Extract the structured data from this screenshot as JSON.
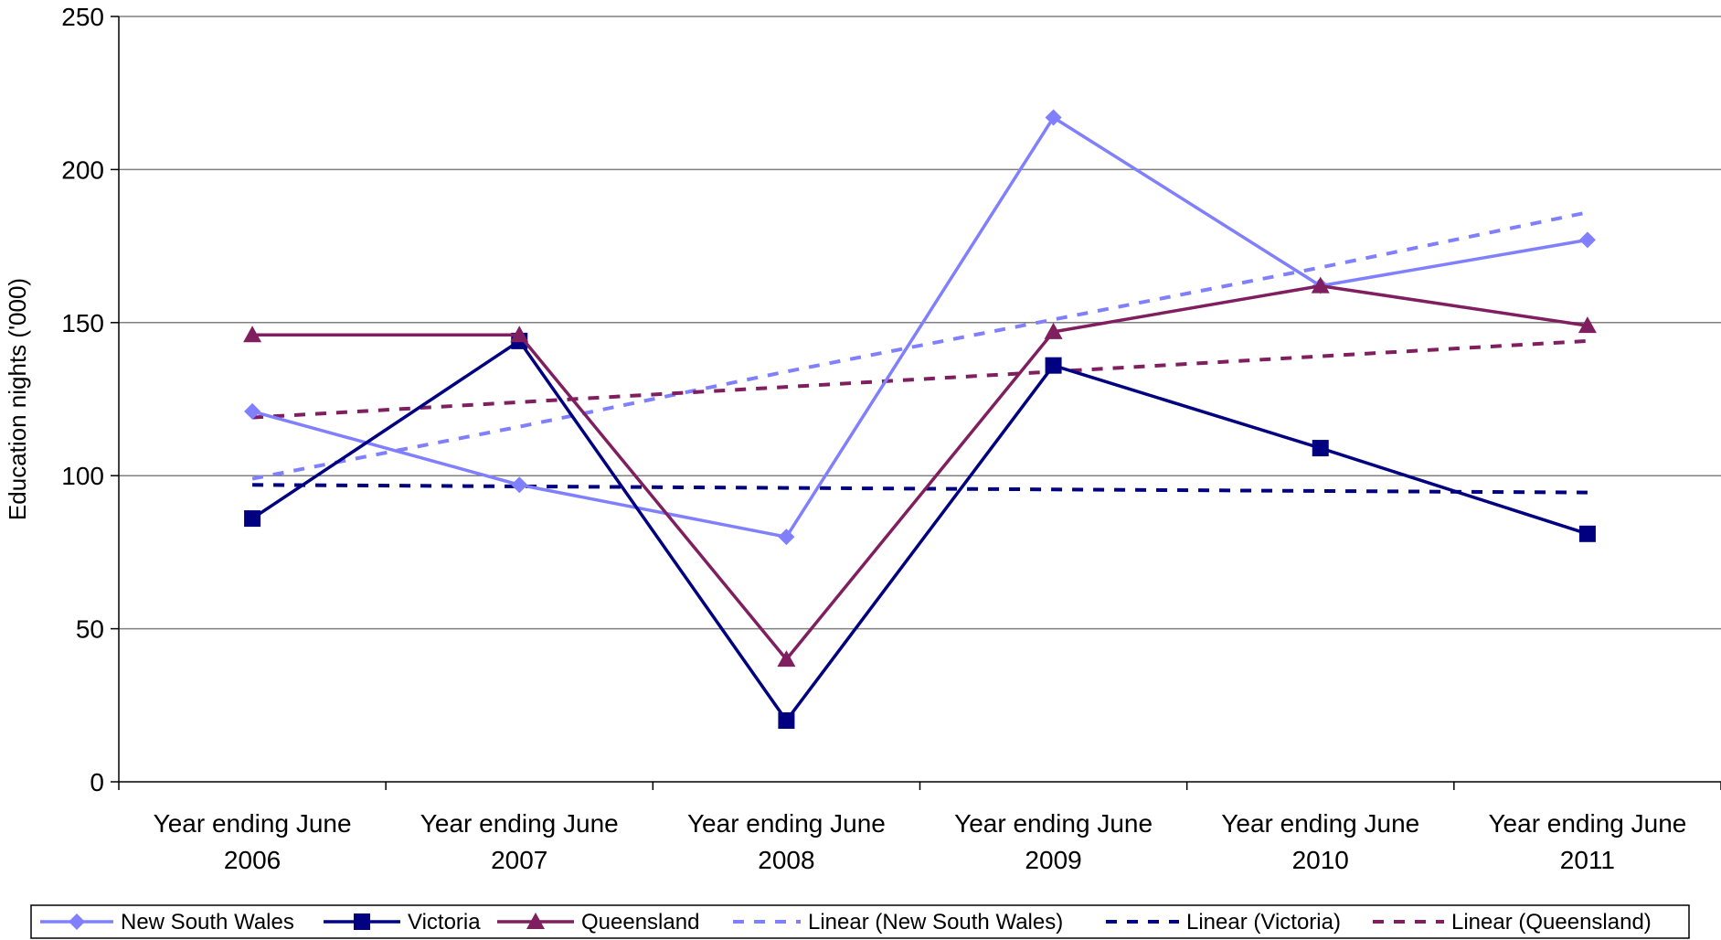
{
  "chart_data": {
    "type": "line",
    "title": "",
    "ylabel": "Education nights ('000)",
    "xlabel": "",
    "ylim": [
      0,
      250
    ],
    "yticks": [
      0,
      50,
      100,
      150,
      200,
      250
    ],
    "grid": "horizontal",
    "legend_position": "bottom",
    "categories": [
      [
        "Year ending June",
        "2006"
      ],
      [
        "Year ending June",
        "2007"
      ],
      [
        "Year ending June",
        "2008"
      ],
      [
        "Year ending June",
        "2009"
      ],
      [
        "Year ending June",
        "2010"
      ],
      [
        "Year ending June",
        "2011"
      ]
    ],
    "series": [
      {
        "name": "New South Wales",
        "values": [
          121,
          97,
          80,
          217,
          162,
          177
        ],
        "color": "#8080ff",
        "marker": "diamond",
        "style": "solid"
      },
      {
        "name": "Victoria",
        "values": [
          86,
          144,
          20,
          136,
          109,
          81
        ],
        "color": "#000080",
        "marker": "square",
        "style": "solid"
      },
      {
        "name": "Queensland",
        "values": [
          146,
          146,
          40,
          147,
          162,
          149
        ],
        "color": "#7f1f5f",
        "marker": "triangle",
        "style": "solid"
      }
    ],
    "trendlines": [
      {
        "name": "Linear (New South Wales)",
        "of": "New South Wales",
        "values": [
          99,
          116,
          134,
          151,
          168,
          186
        ],
        "color": "#8080ff",
        "style": "dashed"
      },
      {
        "name": "Linear (Victoria)",
        "of": "Victoria",
        "values": [
          97,
          96.5,
          96,
          95.5,
          95,
          94.5
        ],
        "color": "#000080",
        "style": "dashed"
      },
      {
        "name": "Linear (Queensland)",
        "of": "Queensland",
        "values": [
          119,
          124,
          129,
          134,
          139,
          144
        ],
        "color": "#7f1f5f",
        "style": "dashed"
      }
    ],
    "legend": [
      "New South Wales",
      "Victoria",
      "Queensland",
      "Linear (New South Wales)",
      "Linear (Victoria)",
      "Linear (Queensland)"
    ]
  }
}
